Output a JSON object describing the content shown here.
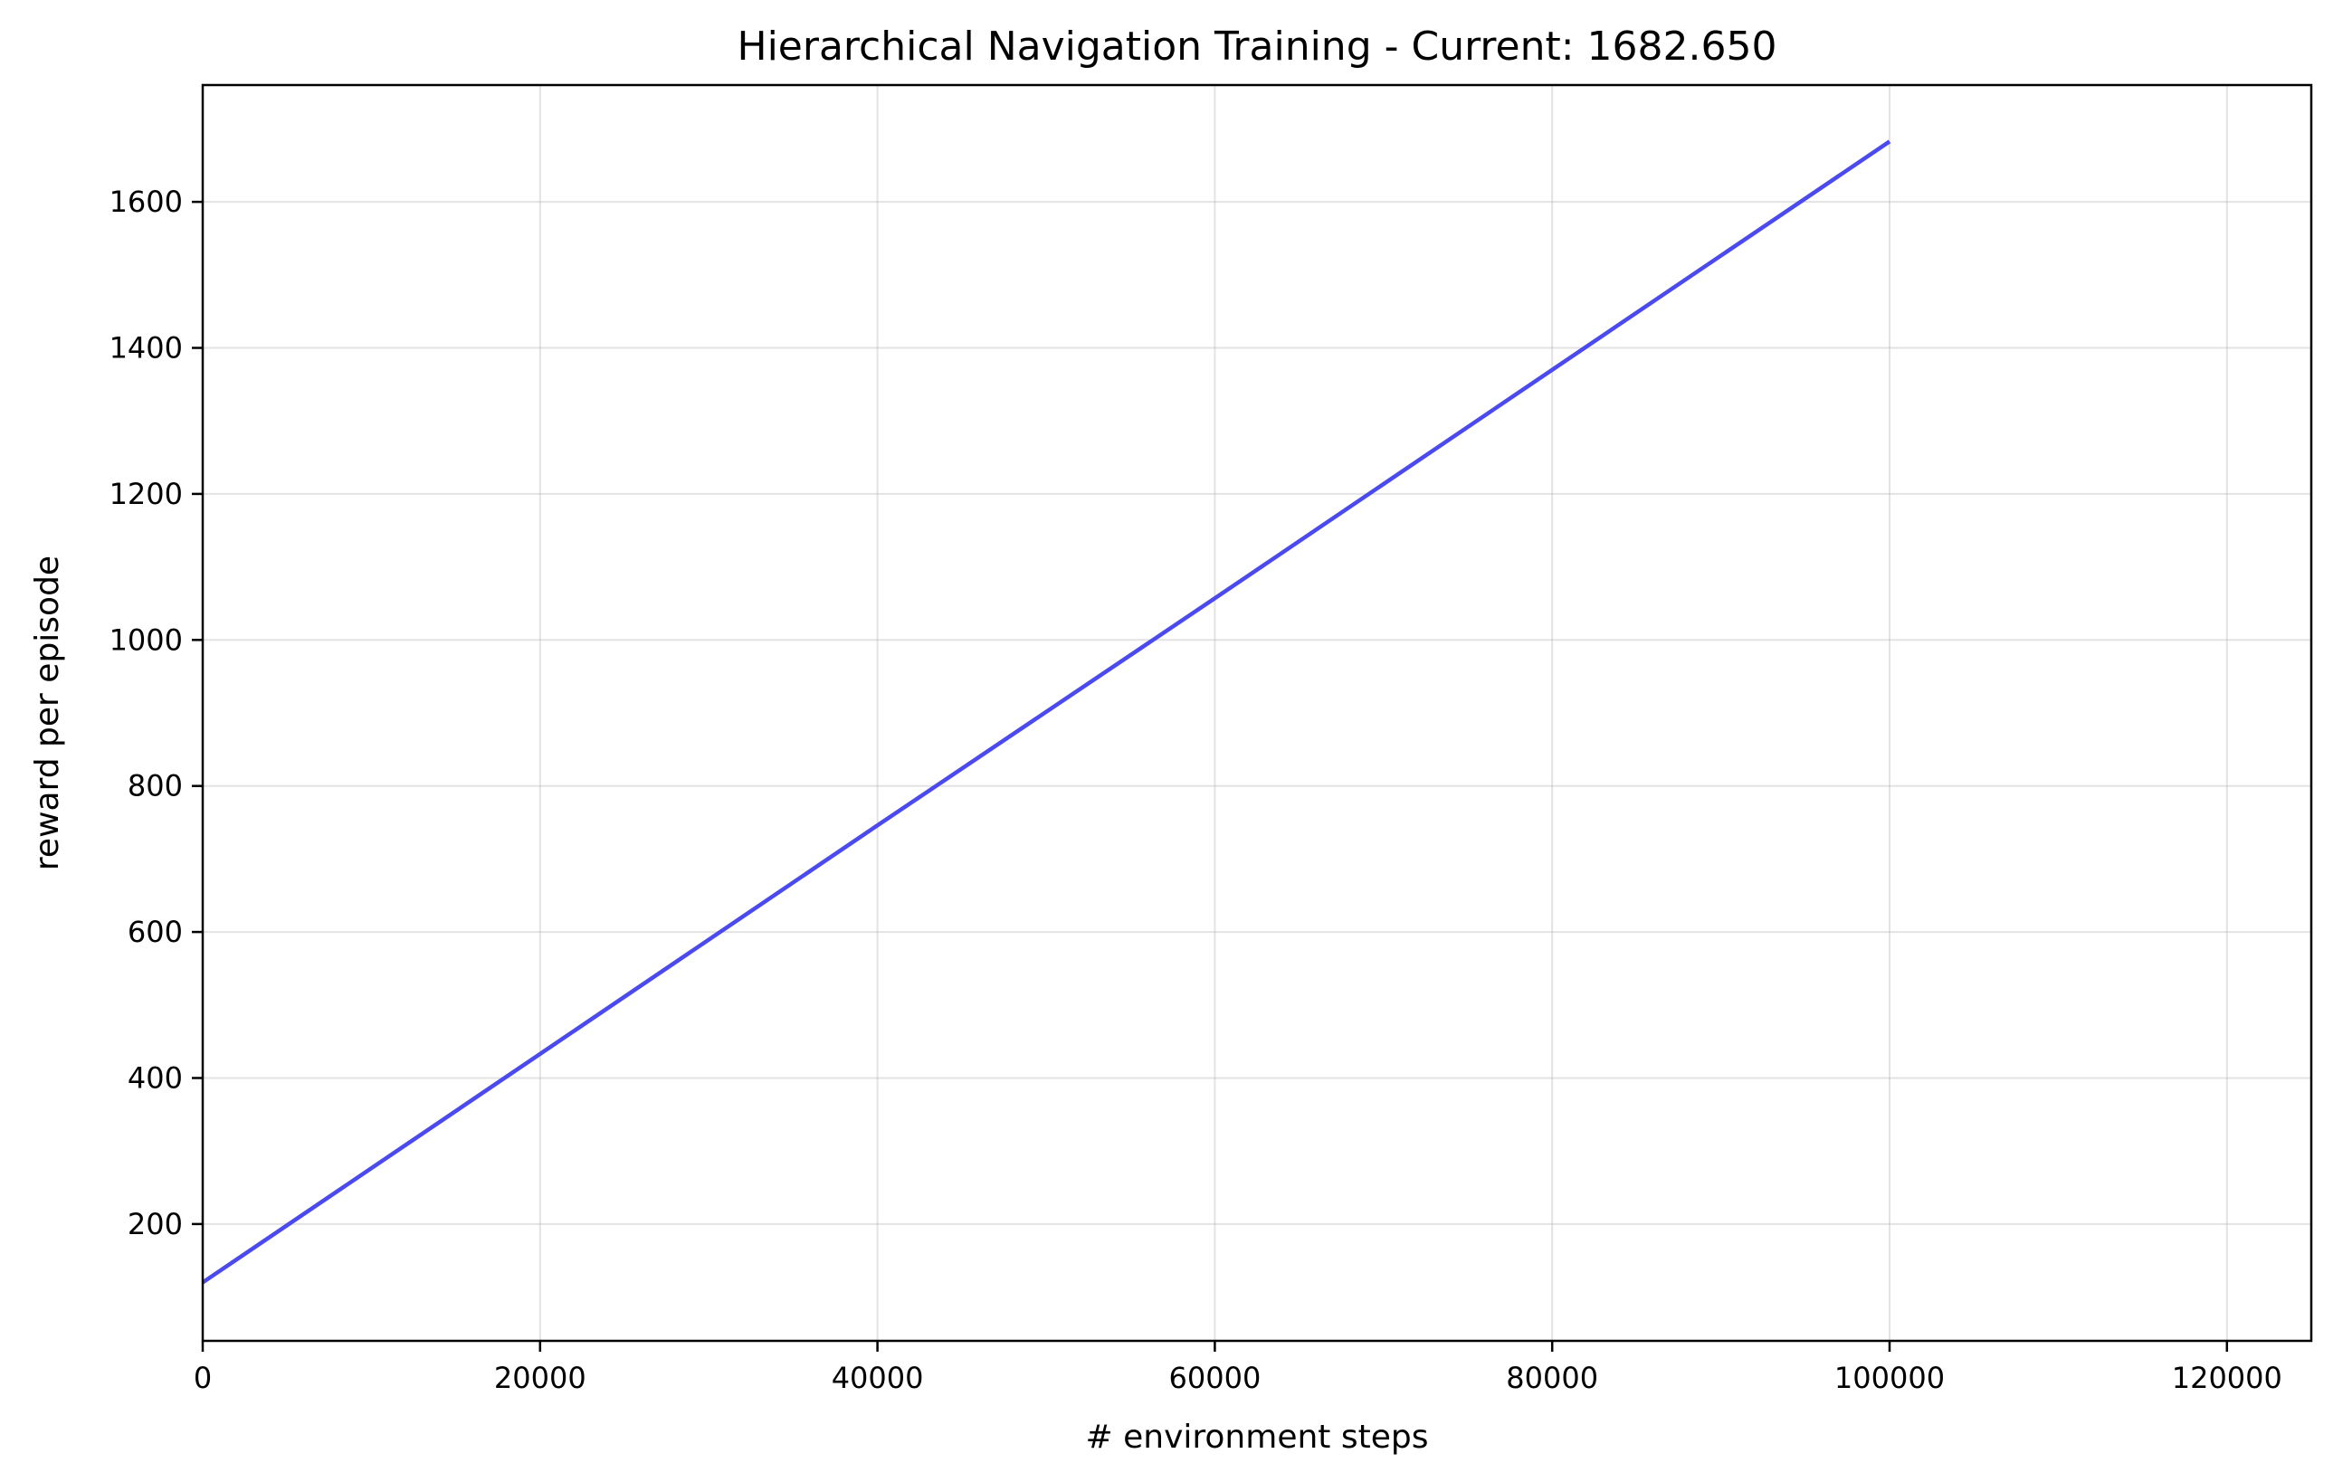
{
  "chart_data": {
    "type": "line",
    "title": "Hierarchical Navigation Training - Current: 1682.650",
    "xlabel": "# environment steps",
    "ylabel": "reward per episode",
    "xlim": [
      0,
      125000
    ],
    "ylim": [
      40,
      1760
    ],
    "xticks": [
      0,
      20000,
      40000,
      60000,
      80000,
      100000,
      120000
    ],
    "yticks": [
      200,
      400,
      600,
      800,
      1000,
      1200,
      1400,
      1600
    ],
    "grid": true,
    "legend": "none",
    "series": [
      {
        "color": "#4a4af0",
        "x": [
          0,
          20000,
          40000,
          60000,
          80000,
          100000
        ],
        "y": [
          120,
          433,
          746,
          1057,
          1370,
          1682.65
        ]
      }
    ]
  }
}
